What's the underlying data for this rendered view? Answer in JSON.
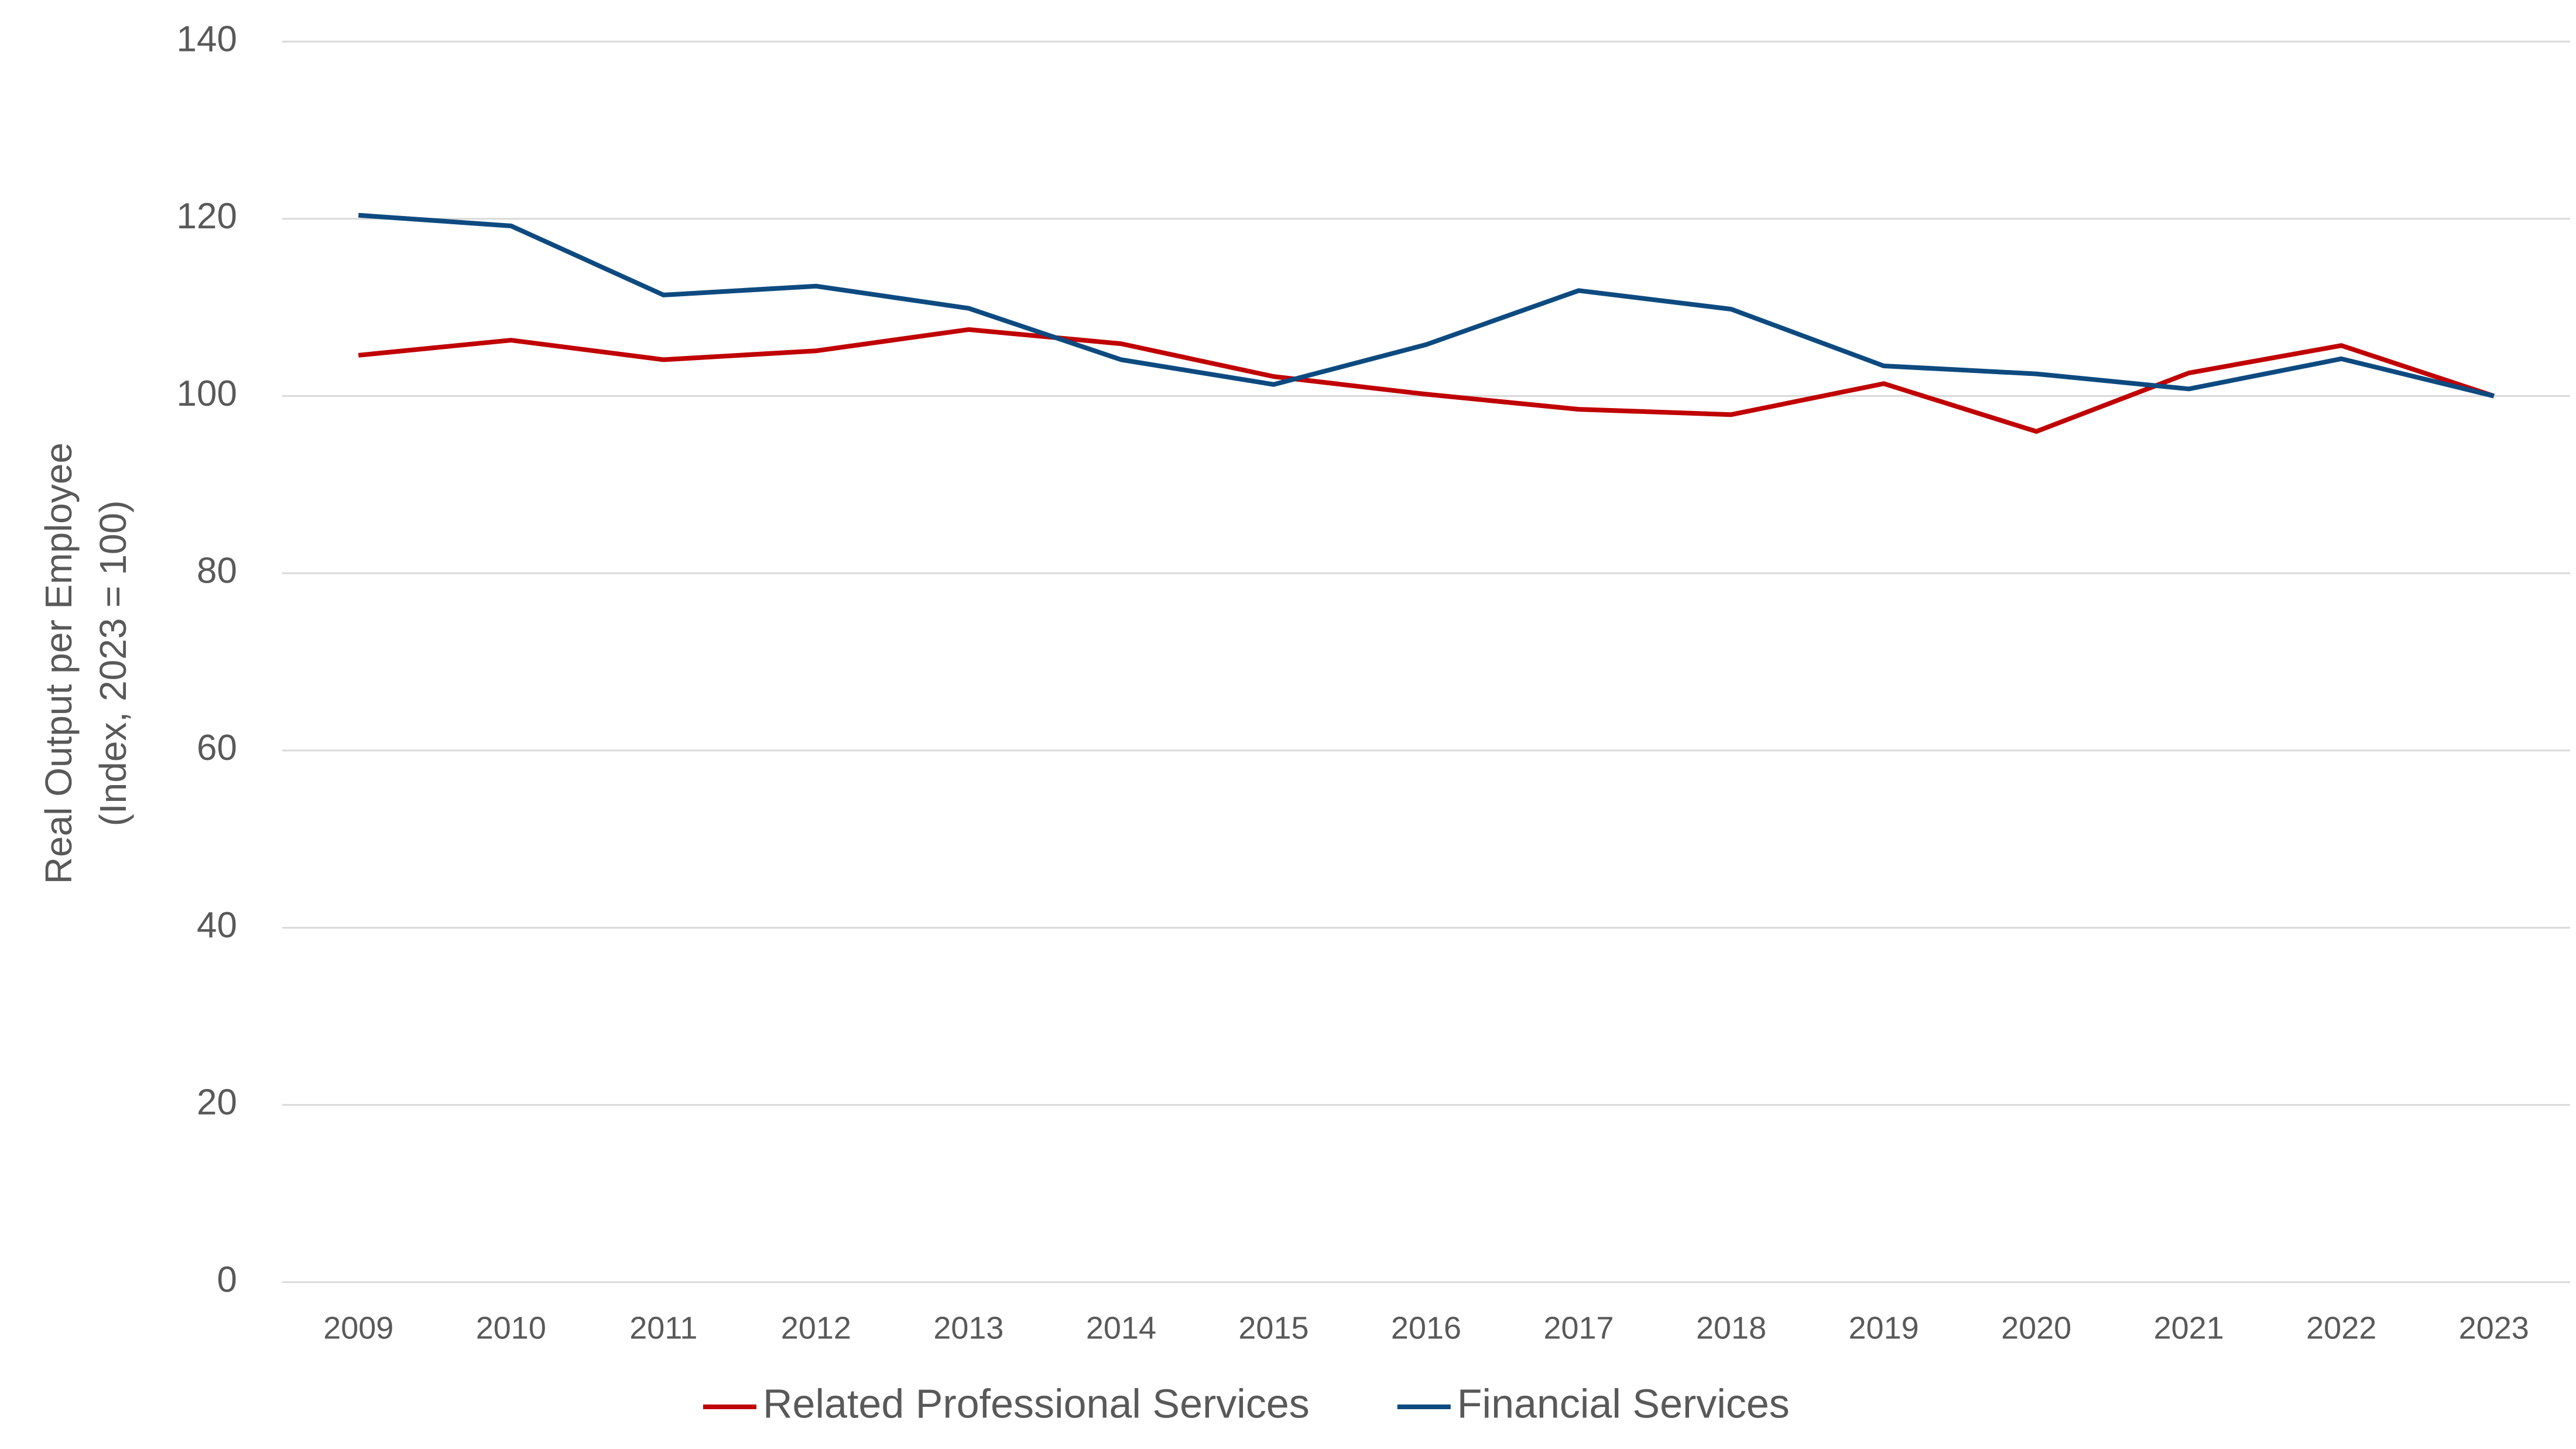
{
  "chart_data": {
    "type": "line",
    "y_axis_title": [
      "Real Output per Employee",
      "(Index, 2023 = 100)"
    ],
    "categories": [
      "2009",
      "2010",
      "2011",
      "2012",
      "2013",
      "2014",
      "2015",
      "2016",
      "2017",
      "2018",
      "2019",
      "2020",
      "2021",
      "2022",
      "2023"
    ],
    "series": [
      {
        "name": "Related Professional Services",
        "color": "#c00000",
        "values": [
          104.6,
          106.3,
          104.1,
          105.1,
          107.5,
          105.9,
          102.2,
          100.2,
          98.5,
          97.9,
          101.4,
          96.0,
          102.6,
          105.7,
          100
        ]
      },
      {
        "name": "Financial Services",
        "color": "#0d4a80",
        "values": [
          120.4,
          119.2,
          111.4,
          112.4,
          109.9,
          104.1,
          101.3,
          105.8,
          111.9,
          109.8,
          103.4,
          102.5,
          100.8,
          104.2,
          100
        ]
      }
    ],
    "ylim": [
      0,
      140
    ],
    "yticks": [
      0,
      20,
      40,
      60,
      80,
      100,
      120,
      140
    ],
    "grid": true,
    "legend": "bottom"
  }
}
